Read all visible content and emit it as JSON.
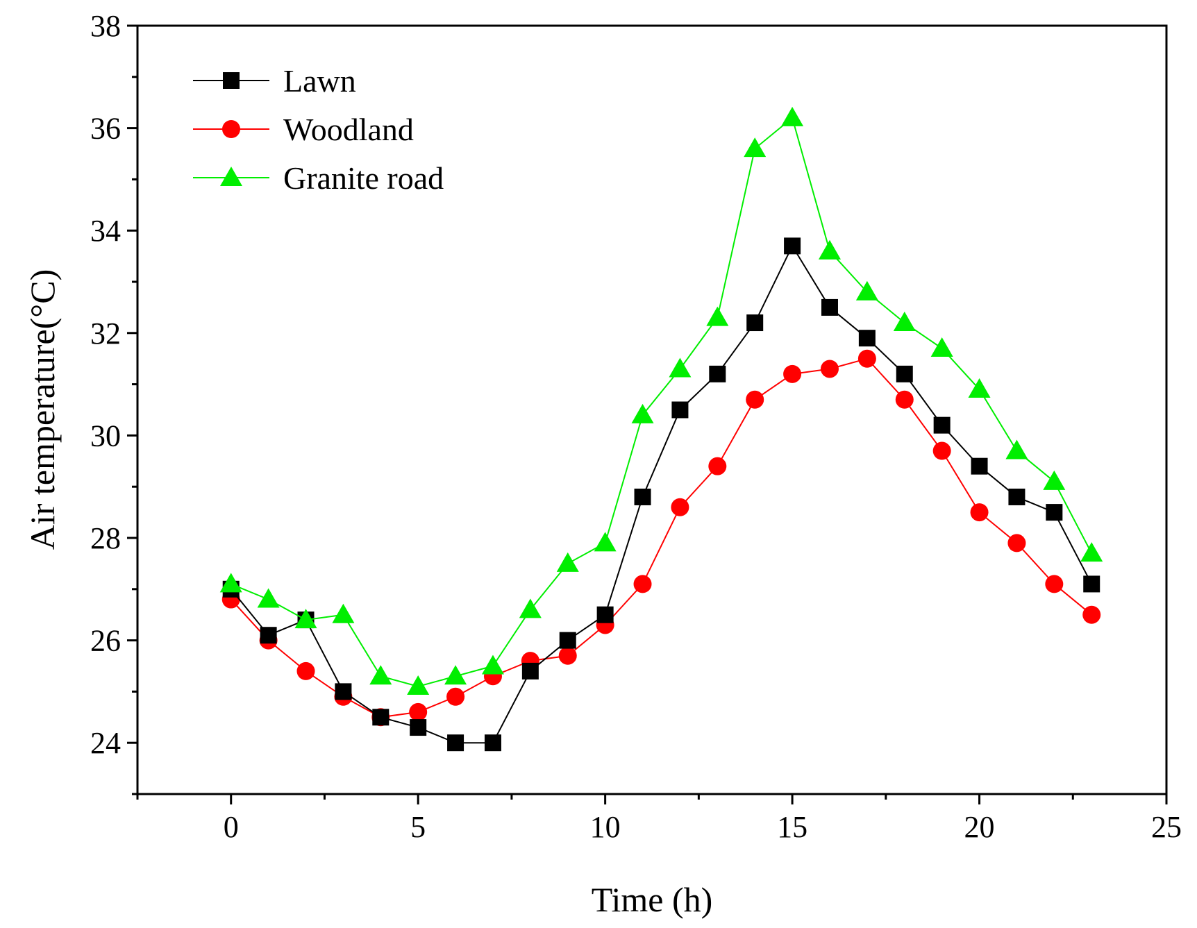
{
  "chart_data": {
    "type": "line",
    "title": "",
    "xlabel": "Time (h)",
    "ylabel": "Air temperature(°C)",
    "xlim": [
      -2.5,
      25
    ],
    "ylim": [
      23,
      38
    ],
    "xticks": [
      0,
      5,
      10,
      15,
      20,
      25
    ],
    "yticks": [
      24,
      26,
      28,
      30,
      32,
      34,
      36,
      38
    ],
    "grid": false,
    "legend_position": "top-left",
    "x": [
      0,
      1,
      2,
      3,
      4,
      5,
      6,
      7,
      8,
      9,
      10,
      11,
      12,
      13,
      14,
      15,
      16,
      17,
      18,
      19,
      20,
      21,
      22,
      23
    ],
    "series": [
      {
        "name": "Lawn",
        "color": "#000000",
        "marker": "square",
        "values": [
          27.0,
          26.1,
          26.4,
          25.0,
          24.5,
          24.3,
          24.0,
          24.0,
          25.4,
          26.0,
          26.5,
          28.8,
          30.5,
          31.2,
          32.2,
          33.7,
          32.5,
          31.9,
          31.2,
          30.2,
          29.4,
          28.8,
          28.5,
          27.1
        ]
      },
      {
        "name": "Woodland",
        "color": "#ff0000",
        "marker": "circle",
        "values": [
          26.8,
          26.0,
          25.4,
          24.9,
          24.5,
          24.6,
          24.9,
          25.3,
          25.6,
          25.7,
          26.3,
          27.1,
          28.6,
          29.4,
          30.7,
          31.2,
          31.3,
          31.5,
          30.7,
          29.7,
          28.5,
          27.9,
          27.1,
          26.5
        ]
      },
      {
        "name": "Granite road",
        "color": "#00ee00",
        "marker": "triangle",
        "values": [
          27.1,
          26.8,
          26.4,
          26.5,
          25.3,
          25.1,
          25.3,
          25.5,
          26.6,
          27.5,
          27.9,
          30.4,
          31.3,
          32.3,
          35.6,
          36.2,
          33.6,
          32.8,
          32.2,
          31.7,
          30.9,
          29.7,
          29.1,
          27.7
        ]
      }
    ]
  }
}
